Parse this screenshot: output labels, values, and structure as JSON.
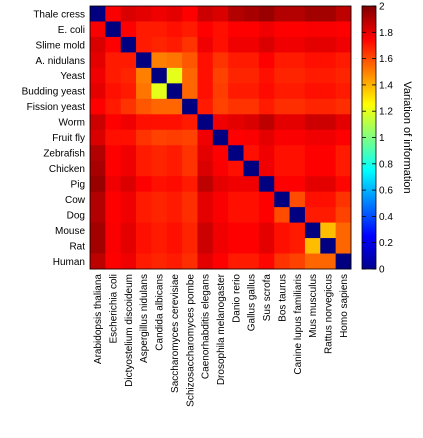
{
  "chart_data": {
    "type": "heatmap",
    "row_labels": [
      "Thale cress",
      "E. coli",
      "Slime mold",
      "A. nidulans",
      "Yeast",
      "Budding yeast",
      "Fission yeast",
      "Worm",
      "Fruit fly",
      "Zebrafish",
      "Chicken",
      "Pig",
      "Cow",
      "Dog",
      "Mouse",
      "Rat",
      "Human"
    ],
    "col_labels": [
      "Arabidopsis thaliana",
      "Escherichia coli",
      "Dictyostelium discoideum",
      "Aspergillus nidulans",
      "Candida albicans",
      "Saccharomyces cerevisiae",
      "Schizosaccharomyces pombe",
      "Caenorhabditis elegans",
      "Drosophila melanogaster",
      "Danio rerio",
      "Gallus gallus",
      "Sus scrofa",
      "Bos taurus",
      "Canine lupus familiaris",
      "Mus musculus",
      "Rattus norvegicus",
      "Homo sapiens"
    ],
    "values": [
      [
        0.0,
        1.76,
        1.82,
        1.8,
        1.78,
        1.8,
        1.75,
        1.85,
        1.82,
        1.9,
        1.92,
        1.95,
        1.9,
        1.9,
        1.93,
        1.93,
        1.88
      ],
      [
        1.76,
        0.0,
        1.75,
        1.7,
        1.7,
        1.72,
        1.7,
        1.75,
        1.72,
        1.75,
        1.75,
        1.78,
        1.75,
        1.75,
        1.76,
        1.76,
        1.75
      ],
      [
        1.82,
        1.75,
        0.0,
        1.7,
        1.68,
        1.7,
        1.65,
        1.78,
        1.72,
        1.78,
        1.78,
        1.82,
        1.78,
        1.78,
        1.8,
        1.8,
        1.78
      ],
      [
        1.8,
        1.7,
        1.7,
        0.0,
        1.5,
        1.52,
        1.58,
        1.72,
        1.65,
        1.7,
        1.7,
        1.75,
        1.7,
        1.7,
        1.72,
        1.72,
        1.7
      ],
      [
        1.78,
        1.7,
        1.68,
        1.5,
        0.0,
        1.2,
        1.55,
        1.72,
        1.62,
        1.68,
        1.68,
        1.72,
        1.68,
        1.68,
        1.7,
        1.7,
        1.68
      ],
      [
        1.8,
        1.72,
        1.7,
        1.52,
        1.2,
        0.0,
        1.55,
        1.72,
        1.63,
        1.7,
        1.7,
        1.73,
        1.7,
        1.7,
        1.72,
        1.72,
        1.7
      ],
      [
        1.75,
        1.7,
        1.65,
        1.58,
        1.55,
        1.55,
        0.0,
        1.7,
        1.62,
        1.65,
        1.65,
        1.7,
        1.66,
        1.66,
        1.68,
        1.68,
        1.66
      ],
      [
        1.85,
        1.75,
        1.78,
        1.72,
        1.72,
        1.72,
        1.7,
        0.0,
        1.78,
        1.8,
        1.82,
        1.88,
        1.8,
        1.8,
        1.85,
        1.85,
        1.8
      ],
      [
        1.82,
        1.72,
        1.72,
        1.65,
        1.62,
        1.63,
        1.62,
        1.78,
        0.0,
        1.75,
        1.76,
        1.8,
        1.76,
        1.76,
        1.78,
        1.78,
        1.75
      ],
      [
        1.9,
        1.75,
        1.78,
        1.7,
        1.68,
        1.7,
        1.65,
        1.8,
        1.75,
        0.0,
        1.72,
        1.78,
        1.72,
        1.72,
        1.75,
        1.75,
        1.7
      ],
      [
        1.92,
        1.75,
        1.78,
        1.7,
        1.68,
        1.7,
        1.65,
        1.82,
        1.76,
        1.72,
        0.0,
        1.78,
        1.72,
        1.72,
        1.75,
        1.75,
        1.7
      ],
      [
        1.95,
        1.78,
        1.82,
        1.75,
        1.72,
        1.73,
        1.7,
        1.88,
        1.8,
        1.78,
        1.78,
        0.0,
        1.75,
        1.75,
        1.8,
        1.8,
        1.74
      ],
      [
        1.9,
        1.75,
        1.78,
        1.7,
        1.68,
        1.7,
        1.66,
        1.8,
        1.76,
        1.72,
        1.72,
        1.75,
        0.0,
        1.6,
        1.72,
        1.72,
        1.65
      ],
      [
        1.9,
        1.75,
        1.78,
        1.7,
        1.68,
        1.7,
        1.66,
        1.8,
        1.76,
        1.72,
        1.72,
        1.75,
        1.6,
        0.0,
        1.7,
        1.7,
        1.62
      ],
      [
        1.93,
        1.76,
        1.8,
        1.72,
        1.7,
        1.72,
        1.68,
        1.85,
        1.78,
        1.75,
        1.75,
        1.8,
        1.72,
        1.7,
        0.0,
        1.38,
        1.55
      ],
      [
        1.93,
        1.76,
        1.8,
        1.72,
        1.7,
        1.72,
        1.68,
        1.85,
        1.78,
        1.75,
        1.75,
        1.8,
        1.72,
        1.7,
        1.38,
        0.0,
        1.55
      ],
      [
        1.88,
        1.75,
        1.78,
        1.7,
        1.68,
        1.7,
        1.66,
        1.8,
        1.75,
        1.7,
        1.7,
        1.74,
        1.65,
        1.62,
        1.55,
        1.55,
        0.0
      ]
    ],
    "colorbar": {
      "label": "Variation of information",
      "min": 0,
      "max": 2,
      "ticks": [
        "0",
        "0.2",
        "0.4",
        "0.6",
        "0.8",
        "1",
        "1.2",
        "1.4",
        "1.6",
        "1.8",
        "2"
      ],
      "colormap": "jet"
    }
  }
}
